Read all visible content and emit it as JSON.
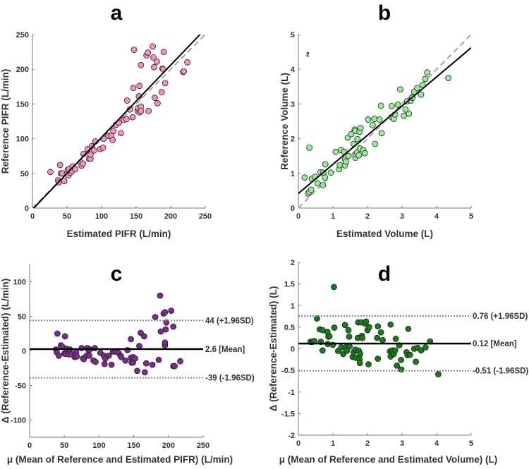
{
  "chart_data": [
    {
      "panel": "a",
      "type": "scatter",
      "xlabel": "Estimated PIFR (L/min)",
      "ylabel": "Reference PIFR (L/min)",
      "xlim": [
        0,
        250
      ],
      "ylim": [
        0,
        250
      ],
      "xticks": [
        0,
        50,
        100,
        150,
        200,
        250
      ],
      "yticks": [
        0,
        50,
        100,
        150,
        200,
        250
      ],
      "marker_color": "#f590c0",
      "regression": {
        "slope": 1.04,
        "intercept": -2
      },
      "identity_line": true,
      "points": [
        [
          26,
          52
        ],
        [
          37,
          40
        ],
        [
          38,
          37
        ],
        [
          40,
          62
        ],
        [
          41,
          50
        ],
        [
          43,
          50
        ],
        [
          46,
          39
        ],
        [
          50,
          50
        ],
        [
          51,
          55
        ],
        [
          52,
          47
        ],
        [
          53,
          56
        ],
        [
          55,
          51
        ],
        [
          57,
          53
        ],
        [
          58,
          60
        ],
        [
          62,
          56
        ],
        [
          70,
          66
        ],
        [
          71,
          61
        ],
        [
          73,
          64
        ],
        [
          74,
          78
        ],
        [
          80,
          85
        ],
        [
          82,
          71
        ],
        [
          84,
          71
        ],
        [
          84,
          77
        ],
        [
          86,
          89
        ],
        [
          89,
          83
        ],
        [
          91,
          96
        ],
        [
          98,
          85
        ],
        [
          102,
          87
        ],
        [
          103,
          100
        ],
        [
          110,
          104
        ],
        [
          114,
          104
        ],
        [
          116,
          98
        ],
        [
          117,
          111
        ],
        [
          121,
          120
        ],
        [
          125,
          123
        ],
        [
          128,
          108
        ],
        [
          132,
          127
        ],
        [
          136,
          128
        ],
        [
          137,
          155
        ],
        [
          141,
          142
        ],
        [
          145,
          131
        ],
        [
          146,
          173
        ],
        [
          147,
          228
        ],
        [
          152,
          140
        ],
        [
          153,
          144
        ],
        [
          154,
          161
        ],
        [
          155,
          176
        ],
        [
          155,
          138
        ],
        [
          157,
          206
        ],
        [
          157,
          146
        ],
        [
          157,
          140
        ],
        [
          165,
          220
        ],
        [
          167,
          224
        ],
        [
          168,
          140
        ],
        [
          174,
          233
        ],
        [
          175,
          217
        ],
        [
          176,
          203
        ],
        [
          177,
          159
        ],
        [
          180,
          211
        ],
        [
          181,
          151
        ],
        [
          187,
          167
        ],
        [
          188,
          201
        ],
        [
          189,
          200
        ],
        [
          190,
          225
        ],
        [
          192,
          180
        ],
        [
          218,
          196
        ],
        [
          219,
          197
        ],
        [
          224,
          210
        ]
      ]
    },
    {
      "panel": "b",
      "type": "scatter",
      "xlabel": "Estimated Volume (L)",
      "ylabel": "Reference Volume (L)",
      "xlim": [
        0,
        5
      ],
      "ylim": [
        0,
        5
      ],
      "xticks": [
        0,
        1,
        2,
        3,
        4,
        5
      ],
      "yticks": [
        0,
        1,
        2,
        3,
        4,
        5
      ],
      "marker_color": "#98ec98",
      "regression": {
        "slope": 0.84,
        "intercept": 0.42
      },
      "identity_line": true,
      "annotations": [
        {
          "text": "2",
          "x": 0.27,
          "y": 4.37
        }
      ],
      "points": [
        [
          0.18,
          0.88
        ],
        [
          0.28,
          0.42
        ],
        [
          0.32,
          0.47
        ],
        [
          0.32,
          1.74
        ],
        [
          0.37,
          0.53
        ],
        [
          0.39,
          0.84
        ],
        [
          0.48,
          0.9
        ],
        [
          0.56,
          0.71
        ],
        [
          0.64,
          1.03
        ],
        [
          0.71,
          0.66
        ],
        [
          0.72,
          1.02
        ],
        [
          0.77,
          0.88
        ],
        [
          0.78,
          1.26
        ],
        [
          0.94,
          1.02
        ],
        [
          1.08,
          1.62
        ],
        [
          1.18,
          1.12
        ],
        [
          1.2,
          1.24
        ],
        [
          1.24,
          1.67
        ],
        [
          1.33,
          1.62
        ],
        [
          1.35,
          1.4
        ],
        [
          1.35,
          1.23
        ],
        [
          1.38,
          1.34
        ],
        [
          1.43,
          2.03
        ],
        [
          1.45,
          1.5
        ],
        [
          1.53,
          2.13
        ],
        [
          1.6,
          1.85
        ],
        [
          1.63,
          2.26
        ],
        [
          1.65,
          2.22
        ],
        [
          1.65,
          1.45
        ],
        [
          1.66,
          1.55
        ],
        [
          1.7,
          1.6
        ],
        [
          1.71,
          1.99
        ],
        [
          1.75,
          1.52
        ],
        [
          1.77,
          2.2
        ],
        [
          1.78,
          1.72
        ],
        [
          1.8,
          2.31
        ],
        [
          1.88,
          1.67
        ],
        [
          1.92,
          1.58
        ],
        [
          2.02,
          2.55
        ],
        [
          2.15,
          2.39
        ],
        [
          2.2,
          2.57
        ],
        [
          2.22,
          1.85
        ],
        [
          2.35,
          2.55
        ],
        [
          2.39,
          2.95
        ],
        [
          2.41,
          2.16
        ],
        [
          2.7,
          2.94
        ],
        [
          2.7,
          2.62
        ],
        [
          2.76,
          2.57
        ],
        [
          2.8,
          2.7
        ],
        [
          2.88,
          2.98
        ],
        [
          2.95,
          3.42
        ],
        [
          3.05,
          2.66
        ],
        [
          3.1,
          2.84
        ],
        [
          3.15,
          3.08
        ],
        [
          3.2,
          2.72
        ],
        [
          3.25,
          3.1
        ],
        [
          3.3,
          3.18
        ],
        [
          3.35,
          3.35
        ],
        [
          3.44,
          3.46
        ],
        [
          3.55,
          3.27
        ],
        [
          3.6,
          3.55
        ],
        [
          3.67,
          3.72
        ],
        [
          3.73,
          3.91
        ],
        [
          4.34,
          3.75
        ]
      ]
    },
    {
      "panel": "c",
      "type": "scatter",
      "xlabel": "μ (Mean of Reference and Estimated PIFR) (L/min)",
      "ylabel": "Δ (Reference-Estimated) (L/min)",
      "xlim": [
        0,
        250
      ],
      "ylim": [
        -125,
        125
      ],
      "xticks": [
        0,
        50,
        100,
        150,
        200,
        250
      ],
      "yticks": [
        -100,
        -50,
        0,
        50,
        100
      ],
      "marker_color": "#7b2d8e",
      "hlines": [
        {
          "value": 44,
          "style": "dotted",
          "label": "44 (+1.96SD)"
        },
        {
          "value": 2.6,
          "style": "solid",
          "label": "2.6 [Mean]"
        },
        {
          "value": -39,
          "style": "dotted",
          "label": "-39 (-1.96SD)"
        }
      ],
      "points": [
        [
          38,
          2
        ],
        [
          39,
          -2
        ],
        [
          40,
          25
        ],
        [
          42,
          -7
        ],
        [
          45,
          8
        ],
        [
          47,
          6
        ],
        [
          50,
          -4
        ],
        [
          51,
          21
        ],
        [
          52,
          -4
        ],
        [
          53,
          3
        ],
        [
          55,
          -2
        ],
        [
          56,
          -5
        ],
        [
          58,
          2
        ],
        [
          60,
          -5
        ],
        [
          65,
          -9
        ],
        [
          67,
          -2
        ],
        [
          68,
          -8
        ],
        [
          75,
          4
        ],
        [
          77,
          -11
        ],
        [
          78,
          -12
        ],
        [
          82,
          -7
        ],
        [
          83,
          4
        ],
        [
          85,
          1
        ],
        [
          86,
          -7
        ],
        [
          87,
          2
        ],
        [
          92,
          -14
        ],
        [
          94,
          4
        ],
        [
          95,
          -16
        ],
        [
          102,
          -3
        ],
        [
          107,
          -7
        ],
        [
          108,
          -19
        ],
        [
          109,
          -11
        ],
        [
          114,
          -7
        ],
        [
          118,
          -20
        ],
        [
          120,
          -1
        ],
        [
          124,
          -1
        ],
        [
          128,
          -3
        ],
        [
          131,
          -7
        ],
        [
          132,
          -9
        ],
        [
          138,
          -14
        ],
        [
          141,
          1
        ],
        [
          146,
          17
        ],
        [
          146,
          -10
        ],
        [
          147,
          -17
        ],
        [
          149,
          -9
        ],
        [
          149,
          -17
        ],
        [
          152,
          -11
        ],
        [
          155,
          -29
        ],
        [
          158,
          7
        ],
        [
          160,
          26
        ],
        [
          165,
          21
        ],
        [
          166,
          -31
        ],
        [
          168,
          -18
        ],
        [
          177,
          -20
        ],
        [
          181,
          49
        ],
        [
          186,
          -13
        ],
        [
          188,
          80
        ],
        [
          189,
          28
        ],
        [
          193,
          54
        ],
        [
          195,
          56
        ],
        [
          195,
          8
        ],
        [
          195,
          12
        ],
        [
          196,
          31
        ],
        [
          197,
          41
        ],
        [
          204,
          58
        ],
        [
          207,
          35
        ],
        [
          207,
          -22
        ],
        [
          209,
          -22
        ],
        [
          217,
          -15
        ]
      ]
    },
    {
      "panel": "d",
      "type": "scatter",
      "xlabel": "μ (Mean of Reference and Estimated Volume) (L)",
      "ylabel": "Δ (Reference-Estimated) (L)",
      "xlim": [
        0,
        5
      ],
      "ylim": [
        -2,
        2
      ],
      "xticks": [
        0,
        1,
        2,
        3,
        4,
        5
      ],
      "yticks": [
        -2,
        -1.5,
        -1,
        -0.5,
        0,
        0.5,
        1,
        1.5,
        2
      ],
      "marker_color": "#187a18",
      "hlines": [
        {
          "value": 0.76,
          "style": "dotted",
          "label": "0.76 (+1.96SD)"
        },
        {
          "value": 0.12,
          "style": "solid",
          "label": "0.12 [Mean]"
        },
        {
          "value": -0.51,
          "style": "dotted",
          "label": "-0.51 (-1.96SD)"
        }
      ],
      "points": [
        [
          0.35,
          0.16
        ],
        [
          0.4,
          0.16
        ],
        [
          0.44,
          0.17
        ],
        [
          0.46,
          0.18
        ],
        [
          0.54,
          0.7
        ],
        [
          0.62,
          0.45
        ],
        [
          0.65,
          0.16
        ],
        [
          0.7,
          0.43
        ],
        [
          0.7,
          -0.04
        ],
        [
          0.84,
          0.39
        ],
        [
          0.85,
          0.11
        ],
        [
          0.87,
          0.28
        ],
        [
          0.9,
          0.29
        ],
        [
          1.0,
          0.09
        ],
        [
          1.03,
          1.43
        ],
        [
          1.04,
          0.49
        ],
        [
          1.15,
          -0.05
        ],
        [
          1.24,
          0.03
        ],
        [
          1.3,
          -0.12
        ],
        [
          1.35,
          0.55
        ],
        [
          1.37,
          0.03
        ],
        [
          1.4,
          -0.05
        ],
        [
          1.45,
          0.43
        ],
        [
          1.47,
          0.28
        ],
        [
          1.48,
          0.05
        ],
        [
          1.57,
          -0.19
        ],
        [
          1.6,
          -0.08
        ],
        [
          1.65,
          -0.02
        ],
        [
          1.67,
          -0.21
        ],
        [
          1.72,
          0.25
        ],
        [
          1.73,
          0.61
        ],
        [
          1.75,
          -0.05
        ],
        [
          1.77,
          -0.24
        ],
        [
          1.78,
          -0.33
        ],
        [
          1.79,
          -0.12
        ],
        [
          1.82,
          0.61
        ],
        [
          1.84,
          0.3
        ],
        [
          1.85,
          0.25
        ],
        [
          1.94,
          0.58
        ],
        [
          1.96,
          0.63
        ],
        [
          2.0,
          0.43
        ],
        [
          2.03,
          -0.36
        ],
        [
          2.05,
          0.5
        ],
        [
          2.28,
          0.25
        ],
        [
          2.3,
          0.52
        ],
        [
          2.3,
          -0.23
        ],
        [
          2.39,
          0.38
        ],
        [
          2.44,
          0.2
        ],
        [
          2.65,
          -0.06
        ],
        [
          2.67,
          0.56
        ],
        [
          2.67,
          -0.18
        ],
        [
          2.72,
          -0.04
        ],
        [
          2.76,
          -0.12
        ],
        [
          2.8,
          -0.04
        ],
        [
          2.82,
          0.23
        ],
        [
          2.85,
          -0.39
        ],
        [
          2.92,
          0.08
        ],
        [
          2.97,
          -0.26
        ],
        [
          2.98,
          -0.48
        ],
        [
          3.13,
          -0.08
        ],
        [
          3.16,
          -0.15
        ],
        [
          3.18,
          0.46
        ],
        [
          3.23,
          -0.14
        ],
        [
          3.35,
          0.0
        ],
        [
          3.4,
          -0.3
        ],
        [
          3.45,
          0.02
        ],
        [
          3.55,
          -0.04
        ],
        [
          3.68,
          0.03
        ],
        [
          3.81,
          0.17
        ],
        [
          4.05,
          -0.59
        ]
      ]
    }
  ]
}
